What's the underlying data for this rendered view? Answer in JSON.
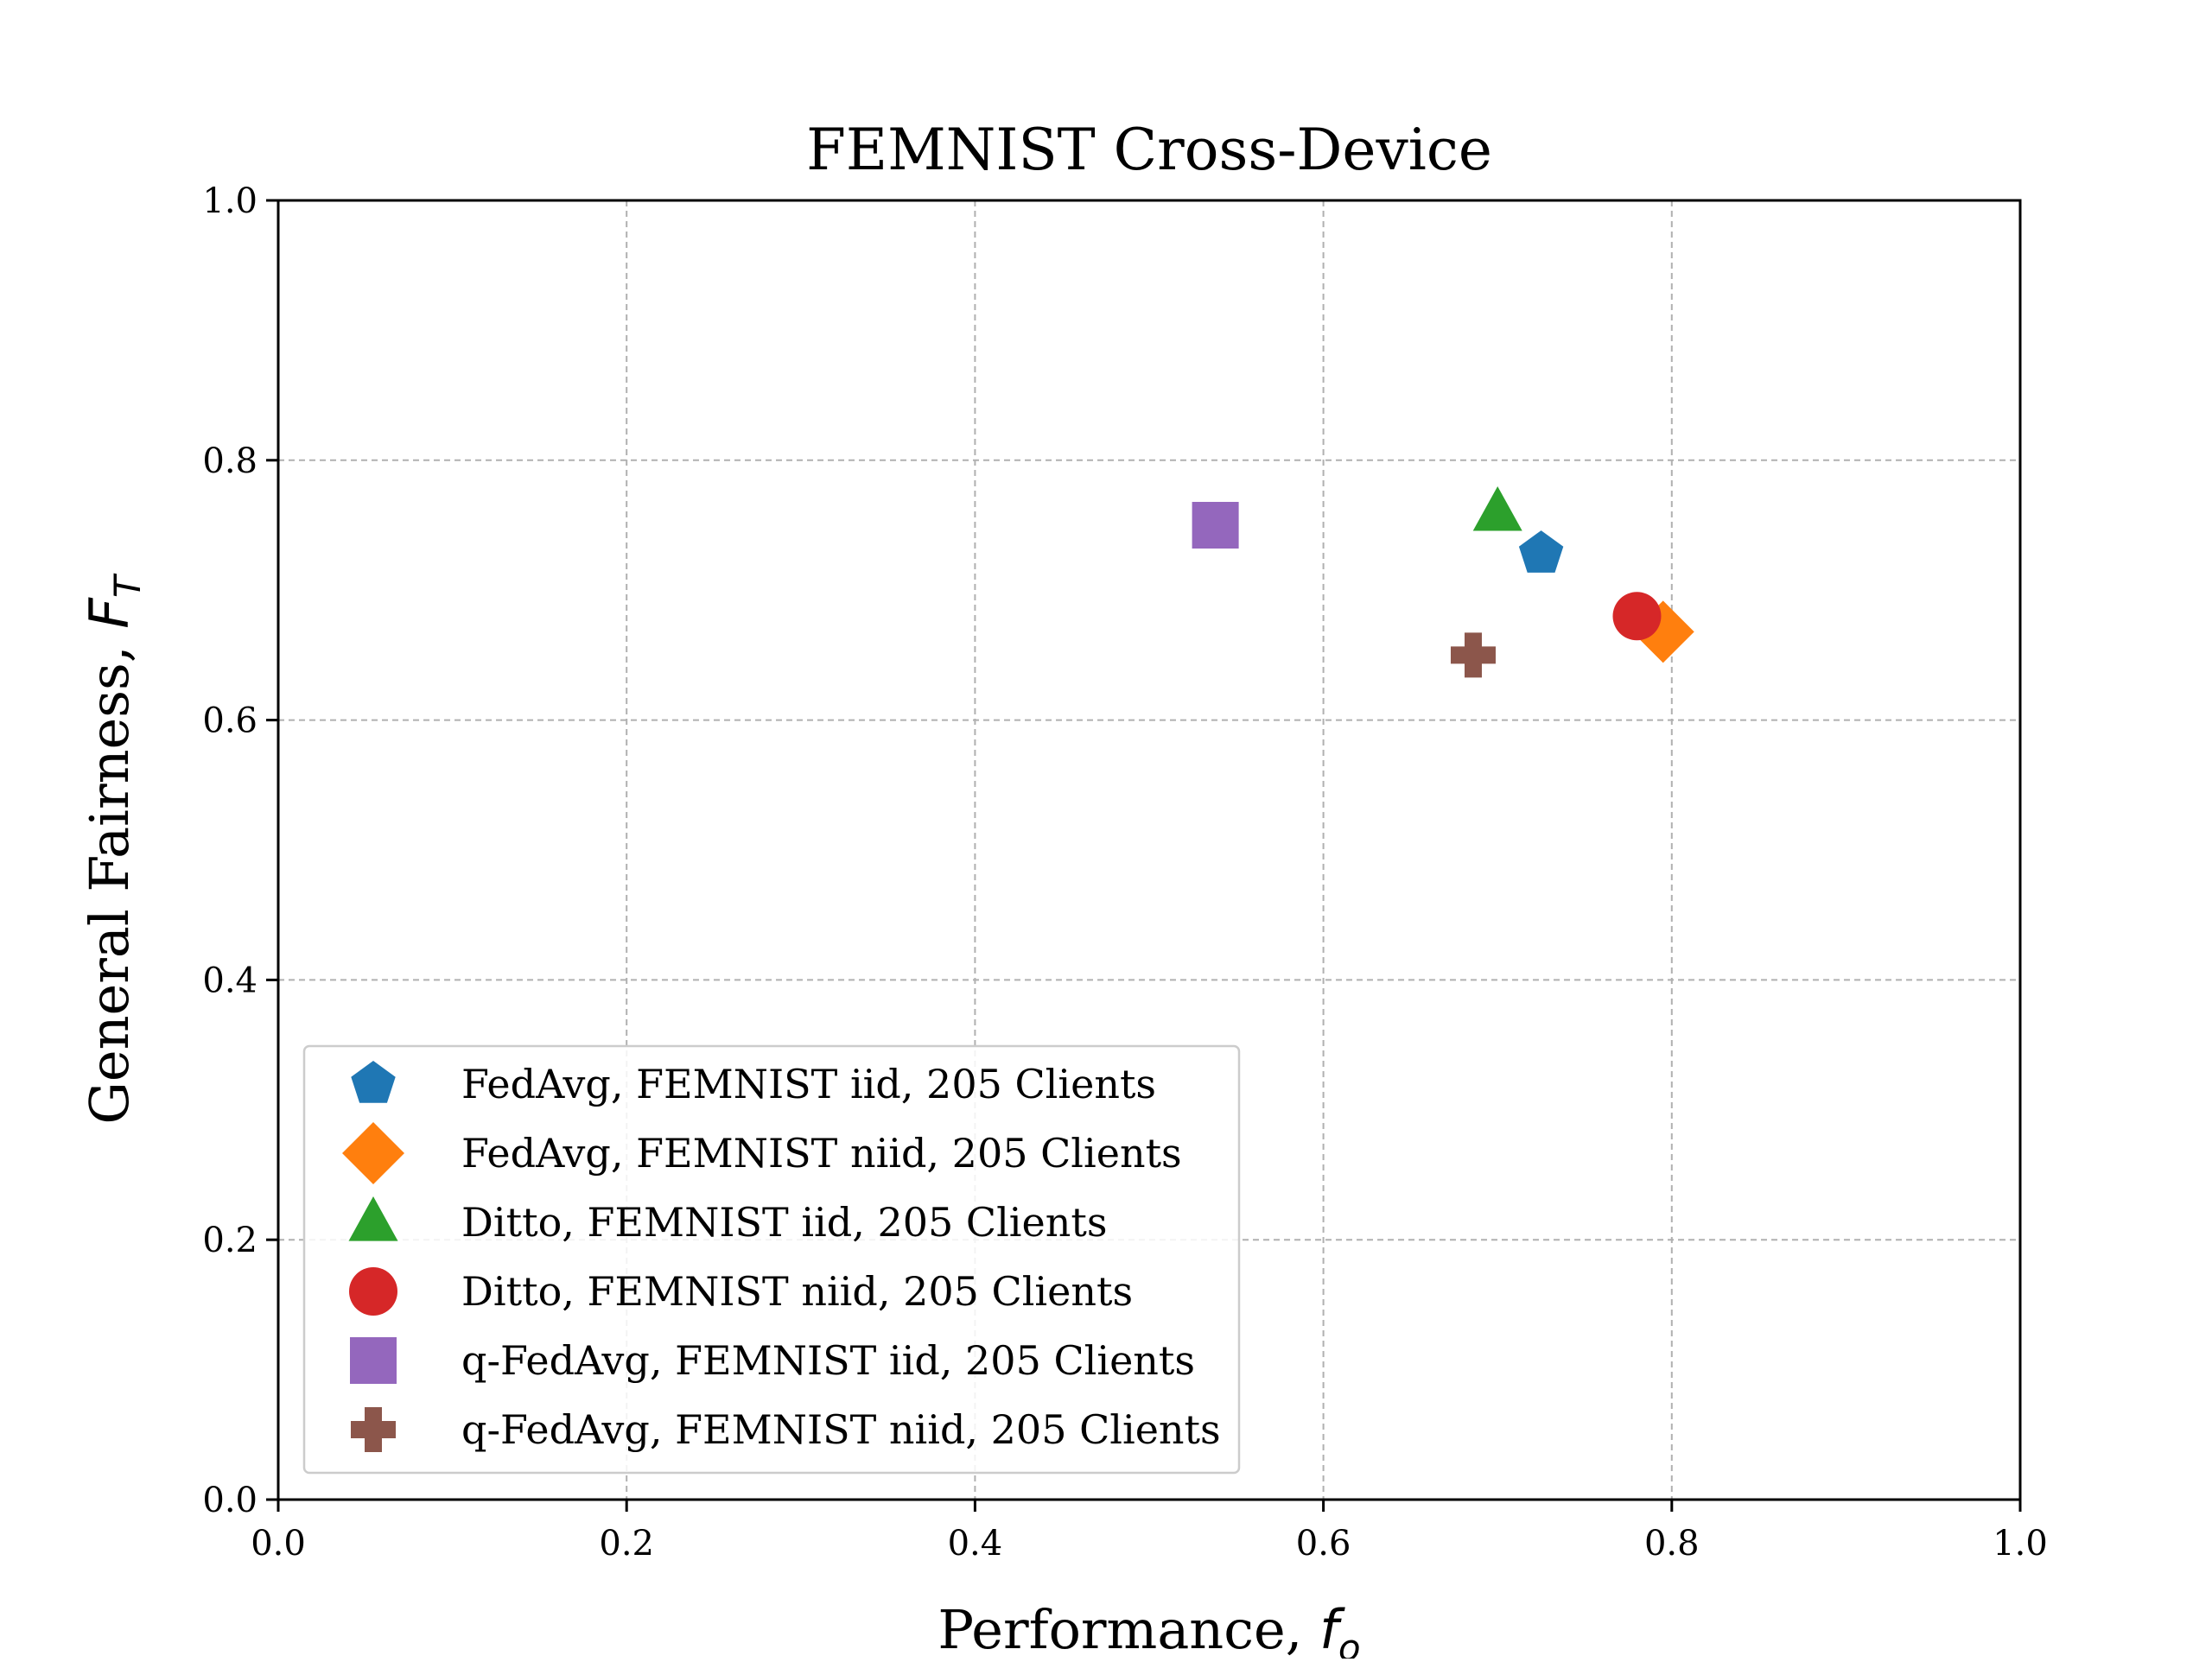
{
  "chart_data": {
    "type": "scatter",
    "title": "FEMNIST Cross-Device",
    "xlabel": {
      "prefix": "Performance, ",
      "symbol": "f",
      "subscript": "o"
    },
    "ylabel": {
      "prefix": "General Fairness, ",
      "symbol": "F",
      "subscript": "T"
    },
    "xlim": [
      0.0,
      1.0
    ],
    "ylim": [
      0.0,
      1.0
    ],
    "xticks": [
      "0.0",
      "0.2",
      "0.4",
      "0.6",
      "0.8",
      "1.0"
    ],
    "yticks": [
      "0.0",
      "0.2",
      "0.4",
      "0.6",
      "0.8",
      "1.0"
    ],
    "grid": true,
    "legend_position": "lower-left",
    "series": [
      {
        "name": "FedAvg, FEMNIST iid, 205 Clients",
        "marker": "pentagon",
        "color": "#1f77b4",
        "x": 0.725,
        "y": 0.728
      },
      {
        "name": "FedAvg, FEMNIST niid, 205 Clients",
        "marker": "diamond",
        "color": "#ff7f0e",
        "x": 0.795,
        "y": 0.668
      },
      {
        "name": "Ditto, FEMNIST iid, 205 Clients",
        "marker": "triangle",
        "color": "#2ca02c",
        "x": 0.7,
        "y": 0.76
      },
      {
        "name": "Ditto, FEMNIST niid, 205 Clients",
        "marker": "circle",
        "color": "#d62728",
        "x": 0.78,
        "y": 0.68
      },
      {
        "name": "q-FedAvg, FEMNIST iid, 205 Clients",
        "marker": "square",
        "color": "#9467bd",
        "x": 0.538,
        "y": 0.75
      },
      {
        "name": "q-FedAvg, FEMNIST niid, 205 Clients",
        "marker": "plus",
        "color": "#8c564b",
        "x": 0.686,
        "y": 0.65
      }
    ]
  }
}
